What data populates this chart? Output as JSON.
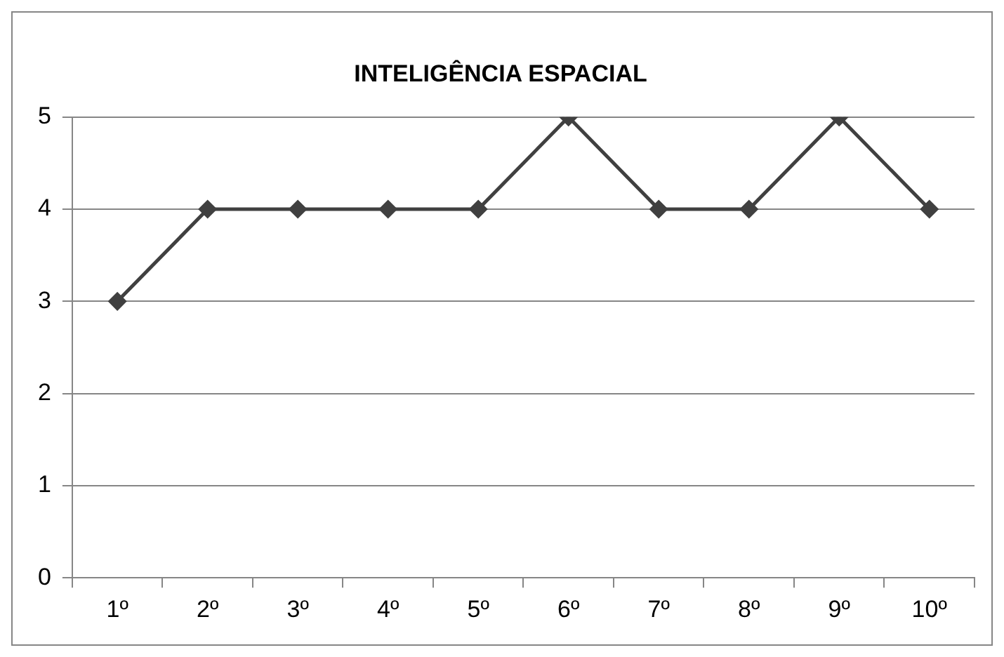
{
  "chart_data": {
    "type": "line",
    "title": "INTELIGÊNCIA ESPACIAL",
    "categories": [
      "1º",
      "2º",
      "3º",
      "4º",
      "5º",
      "6º",
      "7º",
      "8º",
      "9º",
      "10º"
    ],
    "series": [
      {
        "color": "#404040",
        "values": [
          3,
          4,
          4,
          4,
          4,
          5,
          4,
          4,
          5,
          4
        ]
      }
    ],
    "ylim": [
      0,
      5
    ],
    "yticks": [
      0,
      1,
      2,
      3,
      4,
      5
    ],
    "grid": "y",
    "legend": false,
    "marker": "diamond",
    "line_style": "solid"
  }
}
